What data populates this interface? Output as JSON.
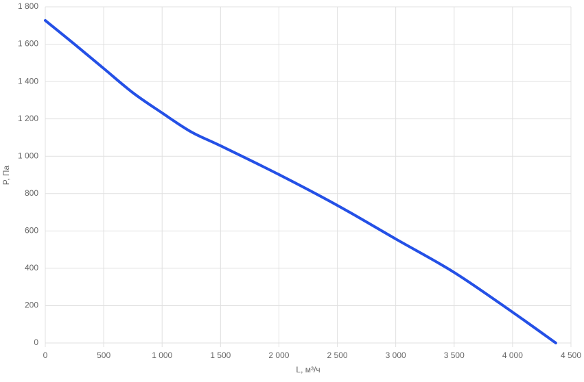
{
  "chart_data": {
    "type": "line",
    "x_label": "L, м³/ч",
    "y_label": "P, Па",
    "x": [
      0,
      250,
      500,
      750,
      1000,
      1250,
      1500,
      2000,
      2500,
      3000,
      3500,
      4000,
      4370
    ],
    "values": [
      1727,
      1600,
      1470,
      1340,
      1232,
      1130,
      1056,
      902,
      737,
      557,
      378,
      165,
      0
    ],
    "color": "#2450e6",
    "xlim": [
      0,
      4500
    ],
    "ylim": [
      0,
      1800
    ],
    "xticks": [
      0,
      500,
      {
        "value": 1000,
        "label": "1 000"
      },
      {
        "value": 1500,
        "label": "1 500"
      },
      {
        "value": 2000,
        "label": "2 000"
      },
      {
        "value": 2500,
        "label": "2 500"
      },
      {
        "value": 3000,
        "label": "3 000"
      },
      {
        "value": 3500,
        "label": "3 500"
      },
      {
        "value": 4000,
        "label": "4 000"
      },
      {
        "value": 4500,
        "label": "4 500"
      }
    ],
    "yticks": [
      0,
      200,
      400,
      600,
      800,
      {
        "value": 1000,
        "label": "1 000"
      },
      {
        "value": 1200,
        "label": "1 200"
      },
      {
        "value": 1400,
        "label": "1 400"
      },
      {
        "value": 1600,
        "label": "1 600"
      },
      {
        "value": 1800,
        "label": "1 800"
      }
    ],
    "grid": true
  }
}
